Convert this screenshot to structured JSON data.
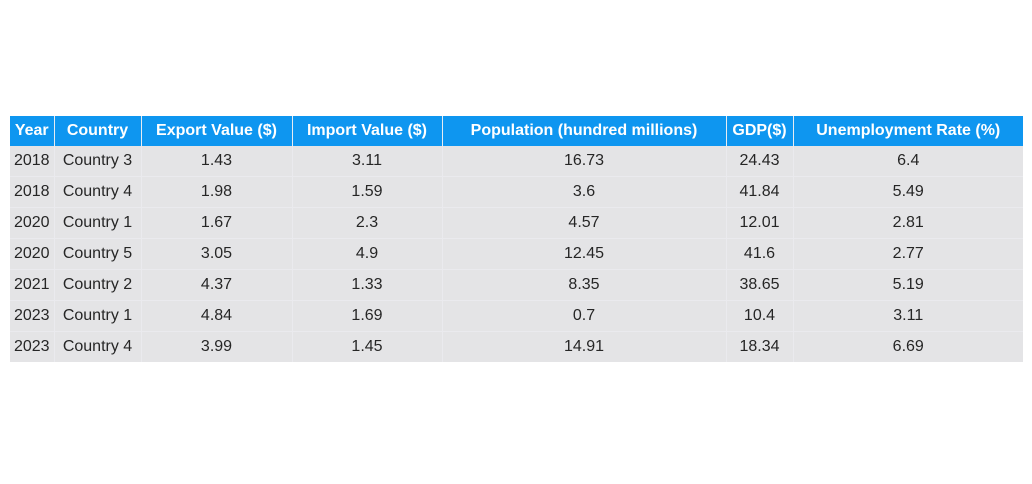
{
  "chart_data": {
    "type": "table",
    "columns": [
      "Year",
      "Country",
      "Export Value ($)",
      "Import Value ($)",
      "Population (hundred millions)",
      "GDP($)",
      "Unemployment Rate (%)"
    ],
    "rows": [
      [
        "2018",
        "Country 3",
        "1.43",
        "3.11",
        "16.73",
        "24.43",
        "6.4"
      ],
      [
        "2018",
        "Country 4",
        "1.98",
        "1.59",
        "3.6",
        "41.84",
        "5.49"
      ],
      [
        "2020",
        "Country 1",
        "1.67",
        "2.3",
        "4.57",
        "12.01",
        "2.81"
      ],
      [
        "2020",
        "Country 5",
        "3.05",
        "4.9",
        "12.45",
        "41.6",
        "2.77"
      ],
      [
        "2021",
        "Country 2",
        "4.37",
        "1.33",
        "8.35",
        "38.65",
        "5.19"
      ],
      [
        "2023",
        "Country 1",
        "4.84",
        "1.69",
        "0.7",
        "10.4",
        "3.11"
      ],
      [
        "2023",
        "Country 4",
        "3.99",
        "1.45",
        "14.91",
        "18.34",
        "6.69"
      ]
    ],
    "colors": {
      "header_bg": "#0e96f0",
      "header_text": "#ffffff",
      "cell_bg": "#e4e4e6",
      "cell_text": "#262626"
    }
  }
}
